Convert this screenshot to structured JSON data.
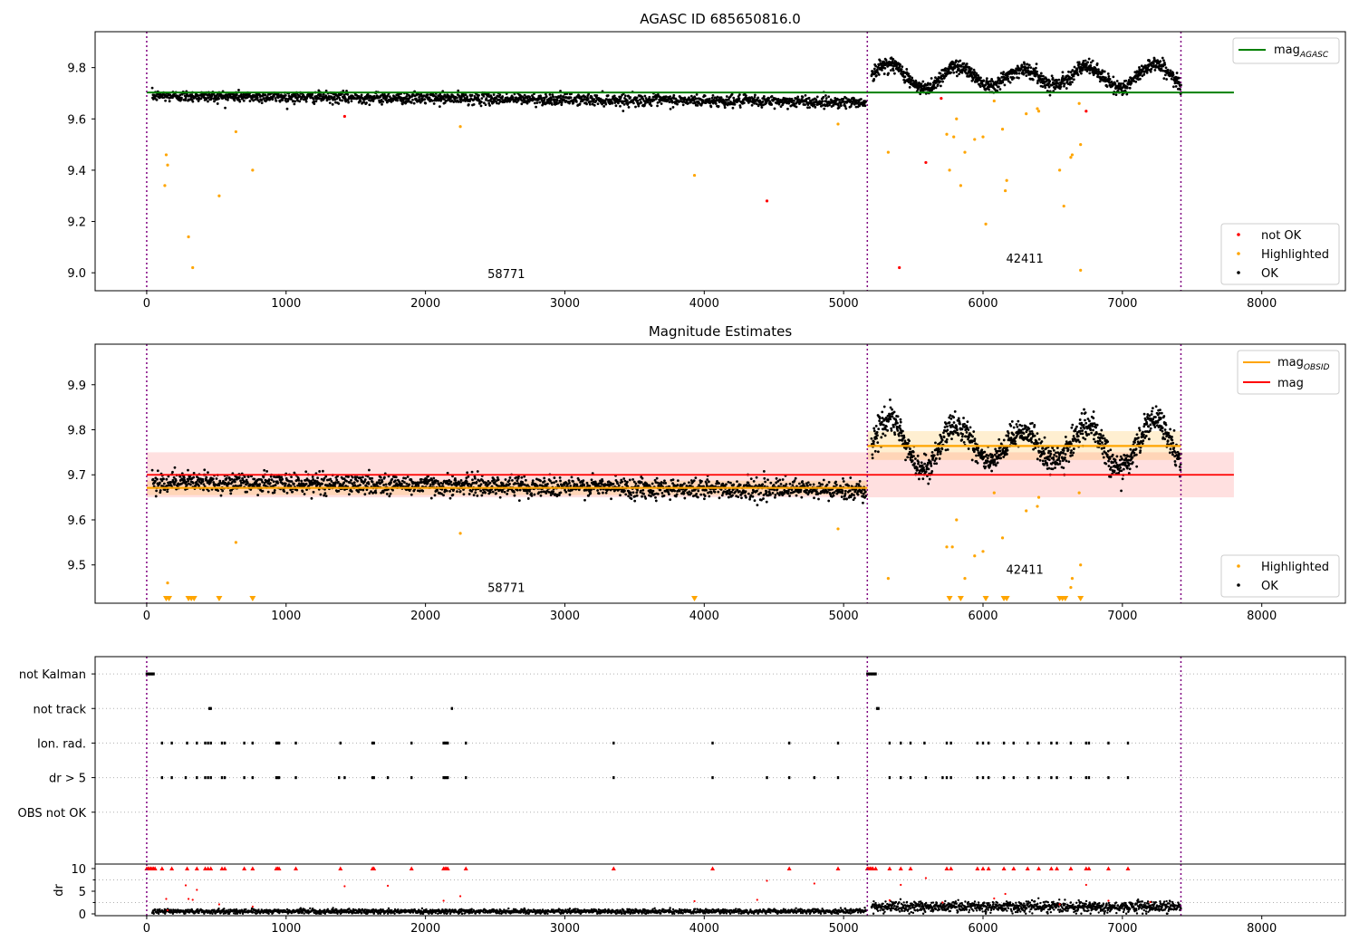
{
  "figure": {
    "title_top": "AGASC ID 685650816.0",
    "title_mid": "Magnitude Estimates"
  },
  "colors": {
    "ok": "#000000",
    "highlighted": "#ffa500",
    "not_ok": "#ff0000",
    "agasc_line": "#008000",
    "obsid_line": "#ffa500",
    "mag_line": "#ff0000",
    "obs_boundary": "#800080",
    "grid": "#b0b0b0"
  },
  "chart_data": [
    {
      "type": "scatter",
      "title": "AGASC ID 685650816.0",
      "xlim": [
        -370,
        8600
      ],
      "ylim": [
        8.93,
        9.94
      ],
      "xticks": [
        0,
        1000,
        2000,
        3000,
        4000,
        5000,
        6000,
        7000,
        8000
      ],
      "yticks": [
        9.0,
        9.2,
        9.4,
        9.6,
        9.8
      ],
      "legend_top": {
        "position": "upper right",
        "entries": [
          "mag$_{AGASC}$"
        ]
      },
      "legend_bottom": {
        "position": "lower right",
        "entries": [
          "not OK",
          "Highlighted",
          "OK"
        ]
      },
      "agasc_mag": {
        "value": 9.703,
        "x_range": [
          0,
          7800
        ]
      },
      "obs_boundaries": [
        0,
        5170,
        7420
      ],
      "obsid_labels": [
        {
          "text": "58771",
          "x": 2580,
          "y": 8.98
        },
        {
          "text": "42411",
          "x": 6300,
          "y": 9.04
        }
      ],
      "segments": [
        {
          "x0": 40,
          "x1": 5160,
          "mean_start": 9.69,
          "mean_end": 9.665,
          "scatter": 0.011,
          "count": 1900
        },
        {
          "x0": 5200,
          "x1": 7420,
          "mean": 9.765,
          "wave_amp": 0.04,
          "wave_period": 480,
          "scatter": 0.014,
          "count": 1100
        }
      ],
      "highlighted_points": [
        [
          140,
          9.46
        ],
        [
          150,
          9.42
        ],
        [
          130,
          9.34
        ],
        [
          300,
          9.14
        ],
        [
          330,
          9.02
        ],
        [
          520,
          9.3
        ],
        [
          640,
          9.55
        ],
        [
          760,
          9.4
        ],
        [
          2250,
          9.57
        ],
        [
          3930,
          9.38
        ],
        [
          4960,
          9.58
        ],
        [
          5320,
          9.47
        ],
        [
          5740,
          9.54
        ],
        [
          5760,
          9.4
        ],
        [
          5790,
          9.53
        ],
        [
          5810,
          9.6
        ],
        [
          5840,
          9.34
        ],
        [
          5870,
          9.47
        ],
        [
          5940,
          9.52
        ],
        [
          6000,
          9.53
        ],
        [
          6020,
          9.19
        ],
        [
          6080,
          9.67
        ],
        [
          6140,
          9.56
        ],
        [
          6160,
          9.32
        ],
        [
          6170,
          9.36
        ],
        [
          6310,
          9.62
        ],
        [
          6390,
          9.64
        ],
        [
          6400,
          9.63
        ],
        [
          6550,
          9.4
        ],
        [
          6580,
          9.26
        ],
        [
          6630,
          9.45
        ],
        [
          6640,
          9.46
        ],
        [
          6690,
          9.66
        ],
        [
          6700,
          9.5
        ],
        [
          6700,
          9.01
        ]
      ],
      "not_ok_points": [
        [
          1420,
          9.61
        ],
        [
          4450,
          9.28
        ],
        [
          5400,
          9.02
        ],
        [
          5590,
          9.43
        ],
        [
          5700,
          9.68
        ],
        [
          6740,
          9.63
        ]
      ]
    },
    {
      "type": "scatter",
      "title": "Magnitude Estimates",
      "xlim": [
        -370,
        8600
      ],
      "ylim": [
        9.415,
        9.99
      ],
      "xticks": [
        0,
        1000,
        2000,
        3000,
        4000,
        5000,
        6000,
        7000,
        8000
      ],
      "yticks": [
        9.5,
        9.6,
        9.7,
        9.8,
        9.9
      ],
      "legend_top": {
        "position": "upper right",
        "entries": [
          "mag$_{OBSID}$",
          "mag"
        ]
      },
      "legend_bottom": {
        "position": "lower right",
        "entries": [
          "Highlighted",
          "OK"
        ]
      },
      "mag": {
        "value": 9.7,
        "band": [
          9.65,
          9.75
        ],
        "x_range": [
          0,
          7800
        ]
      },
      "mag_obsid": [
        {
          "x0": 0,
          "x1": 5170,
          "value": 9.671,
          "band": [
            9.655,
            9.687
          ]
        },
        {
          "x0": 5170,
          "x1": 7420,
          "value": 9.764,
          "band": [
            9.733,
            9.797
          ]
        }
      ],
      "obs_boundaries": [
        0,
        5170,
        7420
      ],
      "obsid_labels": [
        {
          "text": "58771",
          "x": 2580,
          "y": 9.44
        },
        {
          "text": "42411",
          "x": 6300,
          "y": 9.48
        }
      ],
      "segments": [
        {
          "x0": 40,
          "x1": 5160,
          "mean_start": 9.685,
          "mean_end": 9.665,
          "scatter": 0.011,
          "count": 1900
        },
        {
          "x0": 5200,
          "x1": 7420,
          "mean": 9.765,
          "wave_amp": 0.045,
          "wave_period": 480,
          "scatter": 0.015,
          "count": 1100
        }
      ],
      "highlighted_points": [
        [
          150,
          9.46
        ],
        [
          640,
          9.55
        ],
        [
          2250,
          9.57
        ],
        [
          4960,
          9.58
        ],
        [
          5320,
          9.47
        ],
        [
          5740,
          9.54
        ],
        [
          5780,
          9.54
        ],
        [
          5810,
          9.6
        ],
        [
          5870,
          9.47
        ],
        [
          5940,
          9.52
        ],
        [
          6000,
          9.53
        ],
        [
          6080,
          9.66
        ],
        [
          6140,
          9.56
        ],
        [
          6310,
          9.62
        ],
        [
          6390,
          9.63
        ],
        [
          6400,
          9.65
        ],
        [
          6630,
          9.45
        ],
        [
          6640,
          9.47
        ],
        [
          6690,
          9.66
        ],
        [
          6700,
          9.5
        ]
      ],
      "highlighted_below_axis_x": [
        140,
        160,
        300,
        320,
        340,
        520,
        760,
        3930,
        5760,
        5840,
        6020,
        6150,
        6170,
        6550,
        6570,
        6590,
        6700
      ]
    },
    {
      "type": "scatter",
      "title": "",
      "xlim": [
        -370,
        8600
      ],
      "ylim": [
        -0.5,
        5.5
      ],
      "ylabel": "",
      "flag_rows": [
        {
          "label": "not Kalman",
          "level": 5,
          "x": [
            0,
            10,
            20,
            30,
            40,
            50,
            5170,
            5180,
            5190,
            5200,
            5210,
            5220,
            5230
          ]
        },
        {
          "label": "not track",
          "level": 4,
          "x": [
            450,
            460,
            2190,
            5240,
            5250
          ]
        },
        {
          "label": "Ion. rad.",
          "level": 3,
          "x": [
            110,
            180,
            290,
            360,
            420,
            440,
            460,
            540,
            560,
            700,
            760,
            930,
            940,
            950,
            1070,
            1390,
            1620,
            1630,
            1900,
            2130,
            2140,
            2150,
            2160,
            2290,
            3350,
            4060,
            4610,
            4960,
            5330,
            5410,
            5480,
            5580,
            5740,
            5770,
            5960,
            6000,
            6040,
            6150,
            6220,
            6320,
            6400,
            6490,
            6530,
            6630,
            6740,
            6760,
            6900,
            7040
          ]
        },
        {
          "label": "dr > 5",
          "level": 2,
          "x": [
            110,
            180,
            280,
            360,
            420,
            440,
            460,
            540,
            560,
            700,
            760,
            930,
            940,
            950,
            1070,
            1380,
            1420,
            1620,
            1630,
            1730,
            1900,
            2130,
            2140,
            2150,
            2160,
            2290,
            3350,
            4060,
            4450,
            4610,
            4790,
            4960,
            5330,
            5410,
            5480,
            5590,
            5710,
            5740,
            5770,
            5960,
            6000,
            6040,
            6150,
            6220,
            6320,
            6400,
            6490,
            6530,
            6630,
            6740,
            6760,
            6900,
            7040
          ]
        },
        {
          "label": "OBS not OK",
          "level": 1,
          "x": []
        }
      ],
      "obs_boundaries": [
        0,
        5170,
        7420
      ]
    },
    {
      "type": "scatter",
      "title": "",
      "xlim": [
        -370,
        8600
      ],
      "ylim": [
        -0.4,
        11.0
      ],
      "xticks": [
        0,
        1000,
        2000,
        3000,
        4000,
        5000,
        6000,
        7000,
        8000
      ],
      "yticks": [
        0,
        5,
        10
      ],
      "ylabel": "dr",
      "obs_boundaries": [
        0,
        5170,
        7420
      ],
      "segments": [
        {
          "x0": 40,
          "x1": 5160,
          "mean": 0.55,
          "scatter": 0.25,
          "count": 1900
        },
        {
          "x0": 5200,
          "x1": 7420,
          "mean": 1.6,
          "scatter": 0.6,
          "count": 1100
        }
      ],
      "red_points_capped_x": [
        0,
        10,
        20,
        30,
        40,
        50,
        60,
        110,
        180,
        290,
        360,
        420,
        440,
        460,
        540,
        560,
        700,
        760,
        930,
        940,
        950,
        1070,
        1390,
        1620,
        1630,
        1900,
        2130,
        2140,
        2150,
        2160,
        2290,
        3350,
        4060,
        4610,
        4960,
        5170,
        5180,
        5190,
        5200,
        5210,
        5230,
        5330,
        5410,
        5480,
        5740,
        5770,
        5960,
        6000,
        6040,
        6150,
        6220,
        6320,
        6400,
        6490,
        6530,
        6630,
        6740,
        6760,
        6900,
        7040
      ],
      "red_points": [
        [
          140,
          3.3
        ],
        [
          150,
          0.8
        ],
        [
          280,
          6.3
        ],
        [
          300,
          3.3
        ],
        [
          330,
          3.1
        ],
        [
          360,
          5.3
        ],
        [
          520,
          2.1
        ],
        [
          760,
          1.6
        ],
        [
          1420,
          6.1
        ],
        [
          1730,
          6.2
        ],
        [
          2130,
          2.9
        ],
        [
          2250,
          3.9
        ],
        [
          3930,
          2.8
        ],
        [
          4380,
          3.1
        ],
        [
          4450,
          7.3
        ],
        [
          4790,
          6.7
        ],
        [
          5330,
          3.0
        ],
        [
          5410,
          6.4
        ],
        [
          5590,
          7.9
        ],
        [
          5710,
          2.5
        ],
        [
          6080,
          3.4
        ],
        [
          6160,
          4.4
        ],
        [
          6550,
          2.1
        ],
        [
          6740,
          6.4
        ],
        [
          6900,
          2.9
        ],
        [
          7200,
          2.6
        ]
      ]
    }
  ]
}
